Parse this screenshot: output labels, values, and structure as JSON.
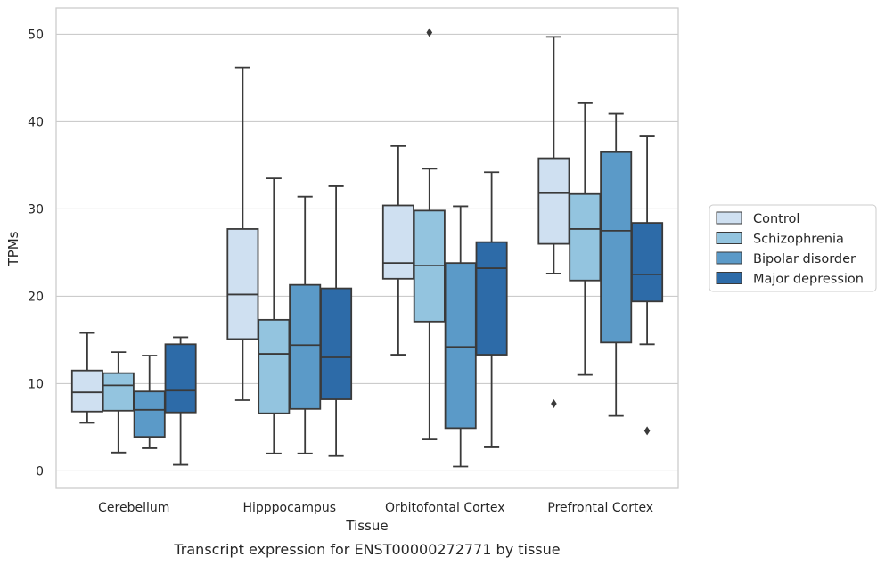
{
  "chart_data": {
    "type": "box",
    "caption": "Transcript expression for ENST00000272771 by tissue",
    "xlabel": "Tissue",
    "ylabel": "TPMs",
    "ylim": [
      -2,
      53
    ],
    "yticks": [
      0,
      10,
      20,
      30,
      40,
      50
    ],
    "grid": true,
    "legend_position": "right",
    "categories": [
      "Cerebellum",
      "Hipppocampus",
      "Orbitofontal Cortex",
      "Prefrontal Cortex"
    ],
    "series": [
      {
        "name": "Control",
        "color": "#cfe0f1",
        "boxes": [
          {
            "whislo": 5.5,
            "q1": 6.8,
            "med": 9.0,
            "q3": 11.5,
            "whishi": 15.8,
            "fliers": []
          },
          {
            "whislo": 8.1,
            "q1": 15.1,
            "med": 20.2,
            "q3": 27.7,
            "whishi": 46.2,
            "fliers": []
          },
          {
            "whislo": 13.3,
            "q1": 22.0,
            "med": 23.8,
            "q3": 30.4,
            "whishi": 37.2,
            "fliers": []
          },
          {
            "whislo": 22.6,
            "q1": 26.0,
            "med": 31.8,
            "q3": 35.8,
            "whishi": 49.7,
            "fliers": [
              7.7
            ]
          }
        ]
      },
      {
        "name": "Schizophrenia",
        "color": "#93c4df",
        "boxes": [
          {
            "whislo": 2.1,
            "q1": 6.9,
            "med": 9.8,
            "q3": 11.2,
            "whishi": 13.6,
            "fliers": []
          },
          {
            "whislo": 2.0,
            "q1": 6.6,
            "med": 13.4,
            "q3": 17.3,
            "whishi": 33.5,
            "fliers": []
          },
          {
            "whislo": 3.6,
            "q1": 17.1,
            "med": 23.5,
            "q3": 29.8,
            "whishi": 34.6,
            "fliers": [
              50.2
            ]
          },
          {
            "whislo": 11.0,
            "q1": 21.8,
            "med": 27.7,
            "q3": 31.7,
            "whishi": 42.1,
            "fliers": []
          }
        ]
      },
      {
        "name": "Bipolar disorder",
        "color": "#5b9ac8",
        "boxes": [
          {
            "whislo": 2.6,
            "q1": 3.9,
            "med": 7.0,
            "q3": 9.1,
            "whishi": 13.2,
            "fliers": []
          },
          {
            "whislo": 2.0,
            "q1": 7.1,
            "med": 14.4,
            "q3": 21.3,
            "whishi": 31.4,
            "fliers": []
          },
          {
            "whislo": 0.5,
            "q1": 4.9,
            "med": 14.2,
            "q3": 23.8,
            "whishi": 30.3,
            "fliers": []
          },
          {
            "whislo": 6.3,
            "q1": 14.7,
            "med": 27.5,
            "q3": 36.5,
            "whishi": 40.9,
            "fliers": []
          }
        ]
      },
      {
        "name": "Major depression",
        "color": "#2d6ba8",
        "boxes": [
          {
            "whislo": 0.7,
            "q1": 6.7,
            "med": 9.2,
            "q3": 14.5,
            "whishi": 15.3,
            "fliers": []
          },
          {
            "whislo": 1.7,
            "q1": 8.2,
            "med": 13.0,
            "q3": 20.9,
            "whishi": 32.6,
            "fliers": []
          },
          {
            "whislo": 2.7,
            "q1": 13.3,
            "med": 23.2,
            "q3": 26.2,
            "whishi": 34.2,
            "fliers": []
          },
          {
            "whislo": 14.5,
            "q1": 19.4,
            "med": 22.5,
            "q3": 28.4,
            "whishi": 38.3,
            "fliers": [
              4.6
            ]
          }
        ]
      }
    ]
  }
}
